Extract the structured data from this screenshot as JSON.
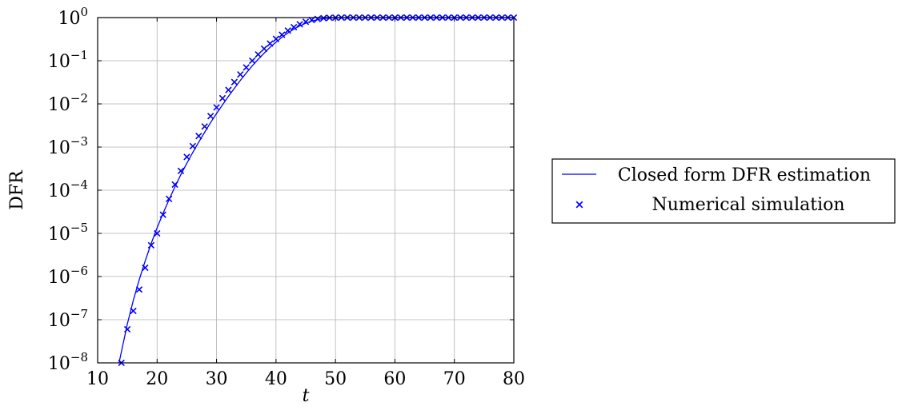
{
  "chart_data": {
    "type": "line",
    "xlabel": "t",
    "ylabel": "DFR",
    "xlim": [
      10,
      80
    ],
    "ylim": [
      1e-08,
      1
    ],
    "yscale": "log",
    "grid": true,
    "legend_position": "right",
    "x_ticks": [
      10,
      20,
      30,
      40,
      50,
      60,
      70,
      80
    ],
    "x_tick_labels": [
      "10",
      "20",
      "30",
      "40",
      "50",
      "60",
      "70",
      "80"
    ],
    "y_ticks": [
      {
        "value": 1.0,
        "base": "10",
        "exp": "0"
      },
      {
        "value": 0.1,
        "base": "10",
        "exp": "−1"
      },
      {
        "value": 0.01,
        "base": "10",
        "exp": "−2"
      },
      {
        "value": 0.001,
        "base": "10",
        "exp": "−3"
      },
      {
        "value": 0.0001,
        "base": "10",
        "exp": "−4"
      },
      {
        "value": 1e-05,
        "base": "10",
        "exp": "−5"
      },
      {
        "value": 1e-06,
        "base": "10",
        "exp": "−6"
      },
      {
        "value": 1e-07,
        "base": "10",
        "exp": "−7"
      },
      {
        "value": 1e-08,
        "base": "10",
        "exp": "−8"
      }
    ],
    "series": [
      {
        "name": "Closed form DFR estimation",
        "kind": "line",
        "color": "#0000ff",
        "x": [
          13.6,
          15,
          16,
          17,
          18,
          19,
          20,
          21,
          22,
          23,
          24,
          25,
          26,
          27,
          28,
          29,
          30,
          31,
          32,
          33,
          34,
          35,
          36,
          37,
          38,
          39,
          40,
          41,
          42,
          43,
          44,
          45,
          46,
          47,
          48,
          49,
          50,
          55,
          60,
          65,
          70,
          75,
          80
        ],
        "y": [
          1e-08,
          8e-08,
          2.8e-07,
          8.5e-07,
          2.3e-06,
          5.8e-06,
          1.35e-05,
          2.9e-05,
          6e-05,
          0.00012,
          0.00023,
          0.00042,
          0.00075,
          0.0013,
          0.0022,
          0.0037,
          0.006,
          0.0095,
          0.015,
          0.023,
          0.035,
          0.052,
          0.076,
          0.108,
          0.15,
          0.205,
          0.27,
          0.35,
          0.44,
          0.54,
          0.64,
          0.74,
          0.83,
          0.9,
          0.95,
          0.98,
          0.99,
          1,
          1,
          1,
          1,
          1,
          1
        ]
      },
      {
        "name": "Numerical simulation",
        "kind": "scatter",
        "marker": "x",
        "color": "#0000ff",
        "x": [
          14,
          15,
          16,
          17,
          18,
          19,
          20,
          21,
          22,
          23,
          24,
          25,
          26,
          27,
          28,
          29,
          30,
          31,
          32,
          33,
          34,
          35,
          36,
          37,
          38,
          39,
          40,
          41,
          42,
          43,
          44,
          45,
          46,
          47,
          48,
          49,
          50,
          51,
          52,
          53,
          54,
          55,
          56,
          57,
          58,
          59,
          60,
          61,
          62,
          63,
          64,
          65,
          66,
          67,
          68,
          69,
          70,
          71,
          72,
          73,
          74,
          75,
          76,
          77,
          78,
          79,
          80
        ],
        "y": [
          1e-08,
          6e-08,
          1.6e-07,
          5e-07,
          1.6e-06,
          5.3e-06,
          1e-05,
          2.7e-05,
          6.3e-05,
          0.000135,
          0.00028,
          0.00059,
          0.00105,
          0.0018,
          0.003,
          0.0052,
          0.0083,
          0.0135,
          0.021,
          0.032,
          0.048,
          0.07,
          0.1,
          0.14,
          0.19,
          0.25,
          0.32,
          0.4,
          0.5,
          0.6,
          0.7,
          0.8,
          0.88,
          0.93,
          0.97,
          0.99,
          1,
          1,
          1,
          1,
          1,
          1,
          1,
          1,
          1,
          1,
          1,
          1,
          1,
          1,
          1,
          1,
          1,
          1,
          1,
          1,
          1,
          1,
          1,
          1,
          1,
          1,
          1,
          1,
          1,
          1,
          1
        ]
      }
    ]
  }
}
